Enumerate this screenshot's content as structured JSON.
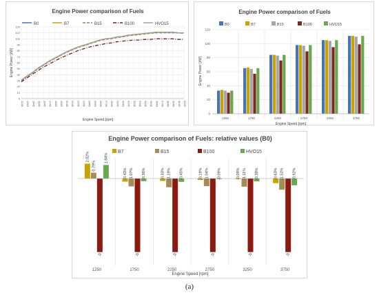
{
  "figure_caption": "(a)",
  "chart_data": [
    {
      "type": "line",
      "title": "Engine Power comparison of Fuels",
      "xlabel": "Engine Speed [rpm]",
      "ylabel": "Engine Power [kW]",
      "x": [
        1245,
        1335,
        1445,
        1545,
        1645,
        1745,
        1845,
        1945,
        2045,
        2145,
        2245,
        2345,
        2445,
        2545,
        2645,
        2745,
        2845,
        2945,
        3045,
        3145,
        3245,
        3345,
        3445,
        3545,
        3645,
        3745,
        3845,
        3945,
        4045,
        4145
      ],
      "x_ticks": [
        1245,
        1345,
        1445,
        1545,
        1645,
        1745,
        1845,
        1945,
        2045,
        2145,
        2245,
        2345,
        2445,
        2545,
        2645,
        2745,
        2845,
        2945,
        3045,
        3145,
        3245,
        3345,
        3445,
        3545,
        3645,
        3745,
        3845,
        3945,
        4045,
        4145
      ],
      "ylim": [
        0,
        120
      ],
      "y_ticks": [
        0,
        10,
        20,
        30,
        40,
        50,
        60,
        70,
        80,
        90,
        100,
        110,
        120
      ],
      "grid": true,
      "legend_position": "top",
      "series": [
        {
          "name": "B0",
          "color": "#4472c4",
          "dash": "solid",
          "values": [
            31,
            37,
            44,
            51,
            57,
            63,
            68,
            73,
            78,
            82,
            86,
            89,
            92,
            95,
            98,
            100,
            101,
            103,
            104,
            106,
            107,
            108,
            109,
            110,
            111,
            111,
            111,
            111,
            110,
            110
          ]
        },
        {
          "name": "B7",
          "color": "#c9a400",
          "dash": "solid",
          "values": [
            31,
            37,
            44,
            51,
            57,
            63,
            68,
            73,
            78,
            82,
            86,
            89,
            92,
            95,
            98,
            100,
            101,
            103,
            104,
            106,
            107,
            108,
            109,
            110,
            111,
            111,
            111,
            111,
            110,
            110
          ]
        },
        {
          "name": "B15",
          "color": "#8b8b52",
          "dash": "dashed",
          "values": [
            30,
            36,
            43,
            50,
            56,
            62,
            67,
            72,
            77,
            81,
            85,
            88,
            91,
            94,
            97,
            99,
            100,
            102,
            103,
            105,
            106,
            107,
            108,
            109,
            110,
            110,
            110,
            110,
            110,
            109
          ]
        },
        {
          "name": "B100",
          "color": "#6b2020",
          "dash": "dashdot",
          "values": [
            28,
            34,
            41,
            47,
            53,
            58,
            63,
            68,
            72,
            76,
            80,
            83,
            86,
            88,
            90,
            92,
            93,
            95,
            96,
            97,
            98,
            98,
            99,
            99,
            100,
            100,
            100,
            100,
            99,
            99
          ]
        },
        {
          "name": "HVO15",
          "color": "#a0a0a0",
          "dash": "solid",
          "values": [
            31,
            37,
            44,
            51,
            57,
            63,
            68,
            73,
            78,
            82,
            86,
            89,
            92,
            95,
            98,
            100,
            101,
            103,
            104,
            106,
            107,
            108,
            109,
            110,
            111,
            111,
            111,
            111,
            110,
            110
          ]
        }
      ]
    },
    {
      "type": "bar",
      "title": "Engine Power comparison of Fuels",
      "xlabel": "Engine Speed [rpm]",
      "ylabel": "Engine Power [kW]",
      "categories": [
        "1250",
        "1750",
        "2250",
        "2750",
        "3250",
        "3750"
      ],
      "ylim": [
        0,
        120
      ],
      "y_ticks": [
        0,
        20,
        40,
        60,
        80,
        100,
        120
      ],
      "grid": true,
      "legend_position": "top",
      "series": [
        {
          "name": "B0",
          "color": "#4472c4",
          "values": [
            33,
            65,
            84,
            98,
            105,
            111
          ]
        },
        {
          "name": "B7",
          "color": "#c9a400",
          "values": [
            34,
            66,
            84,
            98,
            105,
            111
          ]
        },
        {
          "name": "B15",
          "color": "#a5a5a5",
          "values": [
            33,
            64,
            83,
            97,
            104,
            110
          ]
        },
        {
          "name": "B100",
          "color": "#7b2a1f",
          "values": [
            30,
            57,
            76,
            89,
            95,
            99
          ]
        },
        {
          "name": "HVO15",
          "color": "#6aa84f",
          "values": [
            33,
            65,
            84,
            98,
            105,
            111
          ]
        }
      ]
    },
    {
      "type": "bar",
      "title": "Engine Power comparison of Fuels: relative values (B0)",
      "xlabel": "Engine Speed [rpm]",
      "categories": [
        "1250",
        "1750",
        "2250",
        "2750",
        "3250",
        "3750"
      ],
      "ylim": [
        -0.105,
        0.03
      ],
      "legend_position": "top",
      "series": [
        {
          "name": "B7",
          "color": "#c9a400",
          "values": [
            0.0202,
            -0.0043,
            -0.0033,
            -0.0019,
            -0.0009,
            -0.0063
          ],
          "labels": [
            "2.02%",
            "-0.43%",
            "-0.33%",
            "-0.19%",
            "-0.09%",
            "-0.63%"
          ]
        },
        {
          "name": "B15",
          "color": "#a58c55",
          "values": [
            0.0079,
            -0.0107,
            -0.0119,
            -0.0104,
            -0.0111,
            -0.0152
          ],
          "labels": [
            "0.79%",
            "-1.07%",
            "-1.19%",
            "-1.04%",
            "-1.11%",
            "-1.52%"
          ]
        },
        {
          "name": "B100",
          "color": "#8b1a10",
          "values": [
            -0.1,
            -0.1,
            -0.1,
            -0.1,
            -0.1,
            -0.1
          ],
          "labels": [
            "-0.1",
            "-0.1",
            "-0.1",
            "-0.1",
            "-0.1",
            "-0.1"
          ]
        },
        {
          "name": "HVO15",
          "color": "#6aa84f",
          "values": [
            0.0184,
            -0.0036,
            -0.0045,
            -0.0009,
            -0.0039,
            -0.0092
          ],
          "labels": [
            "1.84%",
            "-0.36%",
            "-0.45%",
            "-0.09%",
            "-0.39%",
            "-0.92%"
          ]
        }
      ]
    }
  ]
}
